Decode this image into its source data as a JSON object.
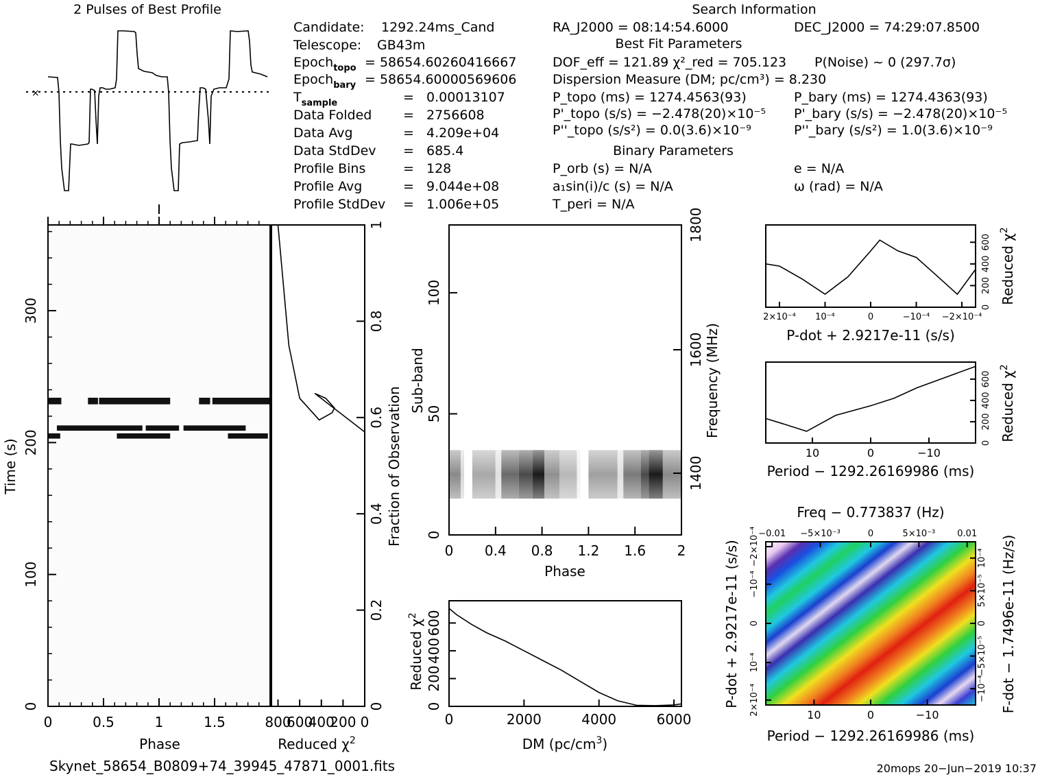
{
  "titles": {
    "profile": "2 Pulses of Best Profile",
    "search": "Search Information",
    "best_fit": "Best Fit Parameters",
    "binary": "Binary Parameters"
  },
  "candidate_info": [
    {
      "label": "Candidate:",
      "value": "1292.24ms_Cand"
    },
    {
      "label": "Telescope:",
      "value": "GB43m"
    },
    {
      "label": "Epoch_topo",
      "value": "= 58654.60260416667"
    },
    {
      "label": "Epoch_bary",
      "value": "= 58654.60000569606"
    },
    {
      "label": "T_sample",
      "value": "0.00013107"
    },
    {
      "label": "Data Folded",
      "value": "2756608"
    },
    {
      "label": "Data Avg",
      "value": "4.209e+04"
    },
    {
      "label": "Data StdDev",
      "value": "685.4"
    },
    {
      "label": "Profile Bins",
      "value": "128"
    },
    {
      "label": "Profile Avg",
      "value": "9.044e+08"
    },
    {
      "label": "Profile StdDev",
      "value": "1.006e+05"
    }
  ],
  "search_info": {
    "ra": "RA_J2000 = 08:14:54.6000",
    "dec": "DEC_J2000 = 74:29:07.8500",
    "dof": "DOF_eff = 121.89  χ²_red = 705.123",
    "p_noise": "P(Noise) ~ 0    (297.7σ)",
    "dm": "Dispersion Measure (DM; pc/cm³) = 8.230",
    "p_topo": "P_topo (ms) =  1274.4563(93)",
    "p_bary": "P_bary (ms) =  1274.4363(93)",
    "pd_topo": "P'_topo (s/s) = −2.478(20)×10⁻⁵",
    "pd_bary": "P'_bary (s/s) = −2.478(20)×10⁻⁵",
    "pdd_topo": "P''_topo (s/s²) = 0.0(3.6)×10⁻⁹",
    "pdd_bary": "P''_bary (s/s²) =  1.0(3.6)×10⁻⁹",
    "p_orb": "P_orb (s) = N/A",
    "e": "e = N/A",
    "a1": "a₁sin(i)/c (s) = N/A",
    "omega": "ω (rad) = N/A",
    "t_peri": "T_peri = N/A"
  },
  "chart_data": [
    {
      "id": "profile",
      "type": "line",
      "title": "2 Pulses of Best Profile",
      "x_range": [
        0,
        2
      ],
      "description_levels": "two pulses per profile, baseline dotted"
    },
    {
      "id": "time_phase",
      "type": "heatmap",
      "xlabel": "Phase",
      "ylabel": "Time (s)",
      "x_ticks": [
        "0",
        "0.5",
        "1",
        "1.5"
      ],
      "y_ticks": [
        "0",
        "100",
        "200",
        "300"
      ],
      "xlim": [
        0,
        2
      ],
      "ylim": [
        0,
        365
      ],
      "bands": [
        {
          "t0": 229,
          "t1": 234,
          "segments": [
            [
              0.0,
              0.12
            ],
            [
              0.36,
              0.45
            ],
            [
              0.46,
              1.1
            ],
            [
              1.36,
              1.46
            ],
            [
              1.48,
              2.0
            ]
          ]
        },
        {
          "t0": 209,
          "t1": 213,
          "segments": [
            [
              0.08,
              0.85
            ],
            [
              0.88,
              1.18
            ],
            [
              1.22,
              1.78
            ]
          ]
        },
        {
          "t0": 203,
          "t1": 207,
          "segments": [
            [
              0.0,
              0.11
            ],
            [
              0.62,
              1.1
            ],
            [
              1.62,
              1.98
            ]
          ]
        }
      ]
    },
    {
      "id": "chi_vs_time",
      "type": "line",
      "xlabel": "Reduced χ²",
      "ylabel": "Fraction of Observation",
      "x_ticks": [
        "800",
        "600",
        "400",
        "200",
        "0"
      ],
      "y_ticks": [
        "0",
        "0.2",
        "0.4",
        "0.6",
        "0.8",
        "1"
      ],
      "x": [
        800,
        760,
        700,
        600,
        420,
        300,
        280,
        360,
        460,
        0
      ],
      "y": [
        1.0,
        0.9,
        0.75,
        0.64,
        0.595,
        0.61,
        0.62,
        0.64,
        0.65,
        0.57
      ]
    },
    {
      "id": "subband",
      "type": "heatmap",
      "xlabel": "Phase",
      "ylabel": "Sub-band",
      "ylabel_right": "Frequency (MHz)",
      "x_ticks": [
        "0",
        "0.4",
        "0.8",
        "1.2",
        "1.6",
        "2"
      ],
      "y_ticks": [
        "0",
        "50",
        "100"
      ],
      "y_ticks_right": [
        "1400",
        "1600",
        "1800"
      ],
      "xlim": [
        0,
        2
      ],
      "ylim": [
        0,
        128
      ],
      "band_range": [
        15,
        35
      ]
    },
    {
      "id": "dm_curve",
      "type": "line",
      "xlabel": "DM (pc/cm³)",
      "ylabel": "Reduced χ²",
      "x_ticks": [
        "0",
        "2000",
        "4000",
        "6000"
      ],
      "y_ticks": [
        "0",
        "200",
        "400",
        "600"
      ],
      "x": [
        0,
        200,
        600,
        1000,
        1500,
        2000,
        2500,
        3000,
        3500,
        4000,
        4500,
        5000,
        5500,
        6000,
        6200
      ],
      "y": [
        705,
        660,
        590,
        530,
        470,
        400,
        330,
        260,
        180,
        100,
        40,
        8,
        5,
        10,
        18
      ],
      "xlim": [
        0,
        6200
      ],
      "ylim": [
        0,
        760
      ]
    },
    {
      "id": "pdot_chi",
      "type": "line",
      "xlabel": "P-dot + 2.9217e-11 (s/s)",
      "ylabel": "Reduced χ²",
      "x_ticks": [
        "2×10⁻⁴",
        "10⁻⁴",
        "0",
        "−10⁻⁴",
        "−2×10⁻⁴"
      ],
      "y_ticks": [
        "0",
        "200",
        "400",
        "600"
      ],
      "x": [
        0.00023,
        0.0002,
        0.00015,
        0.0001,
        5e-05,
        0,
        -2e-05,
        -6e-05,
        -0.0001,
        -0.00014,
        -0.00019,
        -0.00023
      ],
      "y": [
        400,
        380,
        260,
        120,
        280,
        520,
        620,
        520,
        460,
        310,
        120,
        350
      ],
      "xlim": [
        0.00023,
        -0.00023
      ],
      "ylim": [
        0,
        760
      ]
    },
    {
      "id": "period_chi",
      "type": "line",
      "xlabel": "Period − 1292.26169986 (ms)",
      "ylabel": "Reduced χ²",
      "x_ticks": [
        "10",
        "0",
        "−10"
      ],
      "y_ticks": [
        "0",
        "200",
        "400",
        "600"
      ],
      "x": [
        18,
        15,
        11,
        6,
        0,
        -4,
        -8,
        -12,
        -18
      ],
      "y": [
        230,
        180,
        110,
        260,
        350,
        420,
        520,
        600,
        720
      ],
      "xlim": [
        18,
        -18
      ],
      "ylim": [
        0,
        760
      ]
    },
    {
      "id": "p_pdot",
      "type": "heatmap",
      "title": "Freq − 0.773837 (Hz)",
      "xlabel": "Period − 1292.26169986 (ms)",
      "ylabel": "P-dot + 2.9217e-11 (s/s)",
      "ylabel_right": "F-dot − 1.7496e-11 (Hz/s)",
      "x_ticks": [
        "10",
        "0",
        "−10"
      ],
      "x_ticks_top": [
        "−0.01",
        "−5×10⁻³",
        "0",
        "5×10⁻³",
        "0.01"
      ],
      "y_ticks": [
        "2×10⁻⁴",
        "10⁻⁴",
        "0",
        "−10⁻⁴",
        "−2×10⁻⁴"
      ],
      "y_ticks_right": [
        "−10⁻⁴",
        "−5×10⁻⁵",
        "0",
        "5×10⁻⁵",
        "10⁻⁴"
      ]
    }
  ],
  "footer": {
    "filename": "Skynet_58654_B0809+74_39945_47871_0001.fits",
    "stamp": "20mops 20−Jun−2019 10:37"
  }
}
